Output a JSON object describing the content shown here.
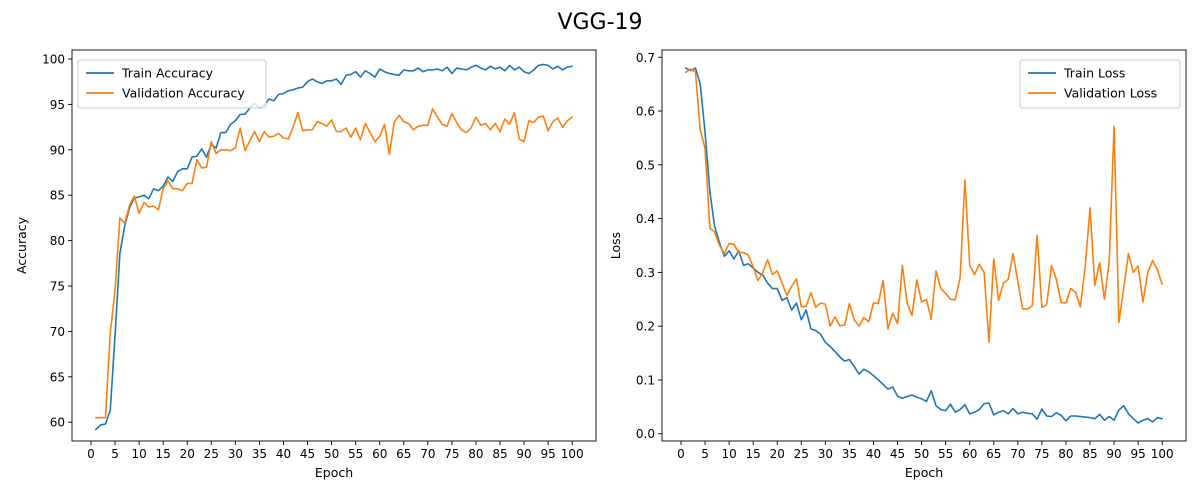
{
  "figure": {
    "title": "VGG-19"
  },
  "chart_data": [
    {
      "type": "line",
      "title": "",
      "xlabel": "Epoch",
      "ylabel": "Accuracy",
      "xlim": [
        -3.95,
        104.95
      ],
      "ylim": [
        57.93,
        100.99
      ],
      "xticks": [
        0,
        5,
        10,
        15,
        20,
        25,
        30,
        35,
        40,
        45,
        50,
        55,
        60,
        65,
        70,
        75,
        80,
        85,
        90,
        95,
        100
      ],
      "yticks": [
        60,
        65,
        70,
        75,
        80,
        85,
        90,
        95,
        100
      ],
      "grid": false,
      "legend_position": "upper-left",
      "series": [
        {
          "name": "Train Accuracy",
          "color": "#1f77b4",
          "x": [
            1,
            2,
            3,
            4,
            5,
            6,
            7,
            8,
            9,
            10,
            11,
            12,
            13,
            14,
            15,
            16,
            17,
            18,
            19,
            20,
            21,
            22,
            23,
            24,
            25,
            26,
            27,
            28,
            29,
            30,
            31,
            32,
            33,
            34,
            35,
            36,
            37,
            38,
            39,
            40,
            41,
            42,
            43,
            44,
            45,
            46,
            47,
            48,
            49,
            50,
            51,
            52,
            53,
            54,
            55,
            56,
            57,
            58,
            59,
            60,
            61,
            62,
            63,
            64,
            65,
            66,
            67,
            68,
            69,
            70,
            71,
            72,
            73,
            74,
            75,
            76,
            77,
            78,
            79,
            80,
            81,
            82,
            83,
            84,
            85,
            86,
            87,
            88,
            89,
            90,
            91,
            92,
            93,
            94,
            95,
            96,
            97,
            98,
            99,
            100
          ],
          "y": [
            59.2,
            59.7,
            59.8,
            61.3,
            69.6,
            78.6,
            81.6,
            83.6,
            84.7,
            84.8,
            85.0,
            84.6,
            85.7,
            85.5,
            86.0,
            87.0,
            86.5,
            87.6,
            87.9,
            87.9,
            89.2,
            89.3,
            90.1,
            89.2,
            90.6,
            90.2,
            91.9,
            91.9,
            92.8,
            93.2,
            93.9,
            93.9,
            94.6,
            95.1,
            94.6,
            94.9,
            95.6,
            95.4,
            96.1,
            96.2,
            96.5,
            96.6,
            96.8,
            96.9,
            97.5,
            97.8,
            97.5,
            97.3,
            97.6,
            97.6,
            97.8,
            97.2,
            98.2,
            98.3,
            98.6,
            98.0,
            98.7,
            98.4,
            98.0,
            98.9,
            98.6,
            98.4,
            98.3,
            98.2,
            98.8,
            98.7,
            98.7,
            99.0,
            98.6,
            98.8,
            98.8,
            98.9,
            98.7,
            99.1,
            98.4,
            99.0,
            98.9,
            98.8,
            99.1,
            99.3,
            99.0,
            98.8,
            99.2,
            98.9,
            99.1,
            98.7,
            99.3,
            98.8,
            99.1,
            98.6,
            98.4,
            98.8,
            99.3,
            99.4,
            99.3,
            98.9,
            99.2,
            98.8,
            99.1,
            99.2
          ]
        },
        {
          "name": "Validation Accuracy",
          "color": "#ff7f0e",
          "x": [
            1,
            2,
            3,
            4,
            5,
            6,
            7,
            8,
            9,
            10,
            11,
            12,
            13,
            14,
            15,
            16,
            17,
            18,
            19,
            20,
            21,
            22,
            23,
            24,
            25,
            26,
            27,
            28,
            29,
            30,
            31,
            32,
            33,
            34,
            35,
            36,
            37,
            38,
            39,
            40,
            41,
            42,
            43,
            44,
            45,
            46,
            47,
            48,
            49,
            50,
            51,
            52,
            53,
            54,
            55,
            56,
            57,
            58,
            59,
            60,
            61,
            62,
            63,
            64,
            65,
            66,
            67,
            68,
            69,
            70,
            71,
            72,
            73,
            74,
            75,
            76,
            77,
            78,
            79,
            80,
            81,
            82,
            83,
            84,
            85,
            86,
            87,
            88,
            89,
            90,
            91,
            92,
            93,
            94,
            95,
            96,
            97,
            98,
            99,
            100
          ],
          "y": [
            60.5,
            60.5,
            60.5,
            69.8,
            74.6,
            82.5,
            81.9,
            83.9,
            84.9,
            83.0,
            84.2,
            83.7,
            83.8,
            83.4,
            85.7,
            86.6,
            85.7,
            85.7,
            85.5,
            86.3,
            86.3,
            88.9,
            88.0,
            88.1,
            90.9,
            89.6,
            90.0,
            90.0,
            89.9,
            90.2,
            92.4,
            89.9,
            91.0,
            92.0,
            90.9,
            92.0,
            91.4,
            91.5,
            91.8,
            91.3,
            91.2,
            92.5,
            94.1,
            92.1,
            92.2,
            92.2,
            93.1,
            92.9,
            92.6,
            93.3,
            92.0,
            92.0,
            92.4,
            91.4,
            92.4,
            91.1,
            92.9,
            91.9,
            90.9,
            91.5,
            92.8,
            89.5,
            93.0,
            93.8,
            93.1,
            92.9,
            92.2,
            92.6,
            92.7,
            92.7,
            94.5,
            93.6,
            92.8,
            92.6,
            94.0,
            93.0,
            92.2,
            91.9,
            92.4,
            93.6,
            92.7,
            92.9,
            92.2,
            92.9,
            92.0,
            93.4,
            92.8,
            94.1,
            91.2,
            90.9,
            93.2,
            93.0,
            93.6,
            93.7,
            92.1,
            93.1,
            93.5,
            92.5,
            93.2,
            93.6
          ]
        }
      ]
    },
    {
      "type": "line",
      "title": "",
      "xlabel": "Epoch",
      "ylabel": "Loss",
      "xlim": [
        -3.95,
        104.95
      ],
      "ylim": [
        -0.0135,
        0.7135
      ],
      "xticks": [
        0,
        5,
        10,
        15,
        20,
        25,
        30,
        35,
        40,
        45,
        50,
        55,
        60,
        65,
        70,
        75,
        80,
        85,
        90,
        95,
        100
      ],
      "yticks": [
        0.0,
        0.1,
        0.2,
        0.3,
        0.4,
        0.5,
        0.6,
        0.7
      ],
      "ytick_labels": [
        "0.0",
        "0.1",
        "0.2",
        "0.3",
        "0.4",
        "0.5",
        "0.6",
        "0.7"
      ],
      "grid": false,
      "legend_position": "upper-right",
      "series": [
        {
          "name": "Train Loss",
          "color": "#1f77b4",
          "x": [
            1,
            2,
            3,
            4,
            5,
            6,
            7,
            8,
            9,
            10,
            11,
            12,
            13,
            14,
            15,
            16,
            17,
            18,
            19,
            20,
            21,
            22,
            23,
            24,
            25,
            26,
            27,
            28,
            29,
            30,
            31,
            32,
            33,
            34,
            35,
            36,
            37,
            38,
            39,
            40,
            41,
            42,
            43,
            44,
            45,
            46,
            47,
            48,
            49,
            50,
            51,
            52,
            53,
            54,
            55,
            56,
            57,
            58,
            59,
            60,
            61,
            62,
            63,
            64,
            65,
            66,
            67,
            68,
            69,
            70,
            71,
            72,
            73,
            74,
            75,
            76,
            77,
            78,
            79,
            80,
            81,
            82,
            83,
            84,
            85,
            86,
            87,
            88,
            89,
            90,
            91,
            92,
            93,
            94,
            95,
            96,
            97,
            98,
            99,
            100
          ],
          "y": [
            0.68,
            0.675,
            0.68,
            0.65,
            0.56,
            0.45,
            0.385,
            0.355,
            0.33,
            0.34,
            0.325,
            0.34,
            0.313,
            0.316,
            0.308,
            0.3,
            0.295,
            0.28,
            0.27,
            0.27,
            0.248,
            0.253,
            0.23,
            0.243,
            0.212,
            0.23,
            0.195,
            0.192,
            0.185,
            0.17,
            0.162,
            0.153,
            0.143,
            0.135,
            0.138,
            0.125,
            0.111,
            0.12,
            0.115,
            0.108,
            0.1,
            0.092,
            0.083,
            0.087,
            0.07,
            0.066,
            0.069,
            0.072,
            0.068,
            0.065,
            0.06,
            0.08,
            0.052,
            0.045,
            0.043,
            0.055,
            0.04,
            0.045,
            0.054,
            0.037,
            0.04,
            0.045,
            0.056,
            0.057,
            0.035,
            0.04,
            0.043,
            0.037,
            0.047,
            0.037,
            0.04,
            0.038,
            0.037,
            0.027,
            0.046,
            0.033,
            0.032,
            0.039,
            0.034,
            0.024,
            0.033,
            0.033,
            0.032,
            0.031,
            0.03,
            0.028,
            0.036,
            0.025,
            0.032,
            0.025,
            0.044,
            0.052,
            0.037,
            0.028,
            0.02,
            0.025,
            0.028,
            0.022,
            0.03,
            0.028
          ]
        },
        {
          "name": "Validation Loss",
          "color": "#ff7f0e",
          "x": [
            1,
            2,
            3,
            4,
            5,
            6,
            7,
            8,
            9,
            10,
            11,
            12,
            13,
            14,
            15,
            16,
            17,
            18,
            19,
            20,
            21,
            22,
            23,
            24,
            25,
            26,
            27,
            28,
            29,
            30,
            31,
            32,
            33,
            34,
            35,
            36,
            37,
            38,
            39,
            40,
            41,
            42,
            43,
            44,
            45,
            46,
            47,
            48,
            49,
            50,
            51,
            52,
            53,
            54,
            55,
            56,
            57,
            58,
            59,
            60,
            61,
            62,
            63,
            64,
            65,
            66,
            67,
            68,
            69,
            70,
            71,
            72,
            73,
            74,
            75,
            76,
            77,
            78,
            79,
            80,
            81,
            82,
            83,
            84,
            85,
            86,
            87,
            88,
            89,
            90,
            91,
            92,
            93,
            94,
            95,
            96,
            97,
            98,
            99,
            100
          ],
          "y": [
            0.672,
            0.678,
            0.672,
            0.565,
            0.53,
            0.382,
            0.375,
            0.35,
            0.335,
            0.354,
            0.352,
            0.337,
            0.337,
            0.332,
            0.31,
            0.285,
            0.3,
            0.324,
            0.296,
            0.303,
            0.28,
            0.257,
            0.274,
            0.288,
            0.236,
            0.237,
            0.262,
            0.235,
            0.243,
            0.241,
            0.2,
            0.217,
            0.201,
            0.202,
            0.242,
            0.212,
            0.2,
            0.216,
            0.208,
            0.243,
            0.242,
            0.285,
            0.195,
            0.224,
            0.205,
            0.313,
            0.243,
            0.22,
            0.286,
            0.245,
            0.25,
            0.213,
            0.303,
            0.27,
            0.261,
            0.25,
            0.249,
            0.29,
            0.472,
            0.313,
            0.296,
            0.315,
            0.3,
            0.17,
            0.325,
            0.248,
            0.28,
            0.287,
            0.335,
            0.283,
            0.232,
            0.232,
            0.238,
            0.369,
            0.235,
            0.24,
            0.313,
            0.287,
            0.244,
            0.243,
            0.27,
            0.263,
            0.236,
            0.31,
            0.42,
            0.276,
            0.318,
            0.25,
            0.32,
            0.572,
            0.207,
            0.27,
            0.335,
            0.3,
            0.312,
            0.245,
            0.3,
            0.322,
            0.305,
            0.278
          ]
        }
      ]
    }
  ]
}
